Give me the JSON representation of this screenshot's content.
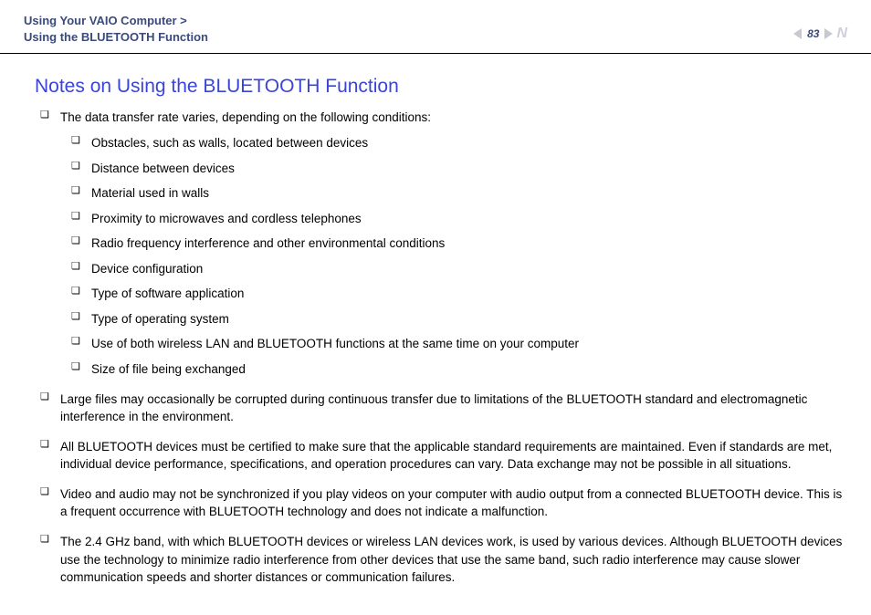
{
  "header": {
    "breadcrumb_line1": "Using Your VAIO Computer >",
    "breadcrumb_line2": "Using the BLUETOOTH Function",
    "page_number": "83"
  },
  "title": "Notes on Using the BLUETOOTH Function",
  "bullets": {
    "b1": "The data transfer rate varies, depending on the following conditions:",
    "nested": {
      "n1": "Obstacles, such as walls, located between devices",
      "n2": "Distance between devices",
      "n3": "Material used in walls",
      "n4": "Proximity to microwaves and cordless telephones",
      "n5": "Radio frequency interference and other environmental conditions",
      "n6": "Device configuration",
      "n7": "Type of software application",
      "n8": "Type of operating system",
      "n9": "Use of both wireless LAN and BLUETOOTH functions at the same time on your computer",
      "n10": "Size of file being exchanged"
    },
    "b2": "Large files may occasionally be corrupted during continuous transfer due to limitations of the BLUETOOTH standard and electromagnetic interference in the environment.",
    "b3": "All BLUETOOTH devices must be certified to make sure that the applicable standard requirements are maintained. Even if standards are met, individual device performance, specifications, and operation procedures can vary. Data exchange may not be possible in all situations.",
    "b4": "Video and audio may not be synchronized if you play videos on your computer with audio output from a connected BLUETOOTH device. This is a frequent occurrence with BLUETOOTH technology and does not indicate a malfunction.",
    "b5": "The 2.4 GHz band, with which BLUETOOTH devices or wireless LAN devices work, is used by various devices. Although BLUETOOTH devices use the technology to minimize radio interference from other devices that use the same band, such radio interference may cause slower communication speeds and shorter distances or communication failures."
  }
}
